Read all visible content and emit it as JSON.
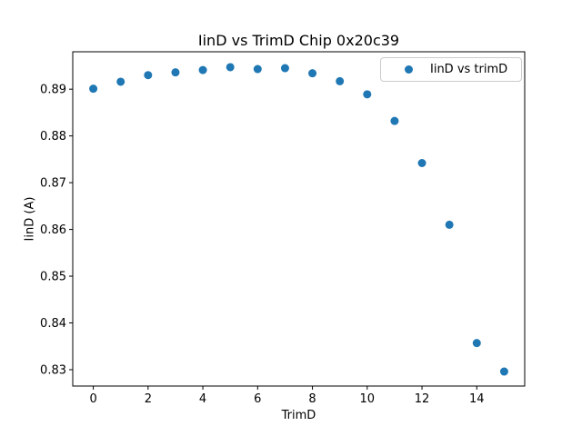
{
  "figure": {
    "background": "#ffffff",
    "axes_edge_color": "#000000",
    "legend_border_color": "#cccccc"
  },
  "chart_data": {
    "type": "scatter",
    "title": "IinD vs TrimD Chip 0x20c39",
    "xlabel": "TrimD",
    "ylabel": "IinD (A)",
    "legend": {
      "label": "IinD vs trimD",
      "position": "upper right"
    },
    "marker_color": "#1f77b4",
    "grid": false,
    "x": [
      0,
      1,
      2,
      3,
      4,
      5,
      6,
      7,
      8,
      9,
      10,
      11,
      12,
      13,
      14,
      15
    ],
    "y": [
      0.8901,
      0.8916,
      0.893,
      0.8936,
      0.8941,
      0.8947,
      0.8943,
      0.8945,
      0.8934,
      0.8917,
      0.8889,
      0.8832,
      0.8742,
      0.861,
      0.8357,
      0.8296
    ],
    "xlim": [
      -0.75,
      15.75
    ],
    "ylim": [
      0.8265,
      0.898
    ],
    "x_ticks": [
      0,
      2,
      4,
      6,
      8,
      10,
      12,
      14
    ],
    "y_ticks": [
      "0.83",
      "0.84",
      "0.85",
      "0.86",
      "0.87",
      "0.88",
      "0.89"
    ]
  }
}
